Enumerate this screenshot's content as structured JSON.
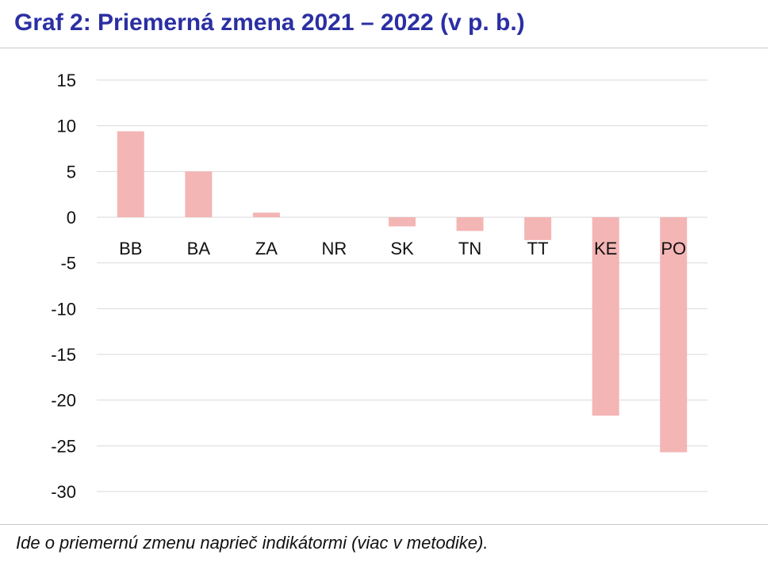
{
  "title": "Graf 2: Priemerná zmena 2021 – 2022 (v p. b.)",
  "footnote": "Ide o priemernú zmenu naprieč indikátormi (viac v metodike).",
  "chart_data": {
    "type": "bar",
    "categories": [
      "BB",
      "BA",
      "ZA",
      "NR",
      "SK",
      "TN",
      "TT",
      "KE",
      "PO"
    ],
    "values": [
      9.4,
      5.0,
      0.5,
      0.0,
      -1.0,
      -1.5,
      -2.5,
      -21.7,
      -25.7
    ],
    "ylim": [
      -30,
      15
    ],
    "yticks": [
      15,
      10,
      5,
      0,
      -5,
      -10,
      -15,
      -20,
      -25,
      -30
    ],
    "grid": true,
    "legend": "none",
    "bar_color": "#f4b5b5",
    "grid_color": "#d9d9d9"
  }
}
